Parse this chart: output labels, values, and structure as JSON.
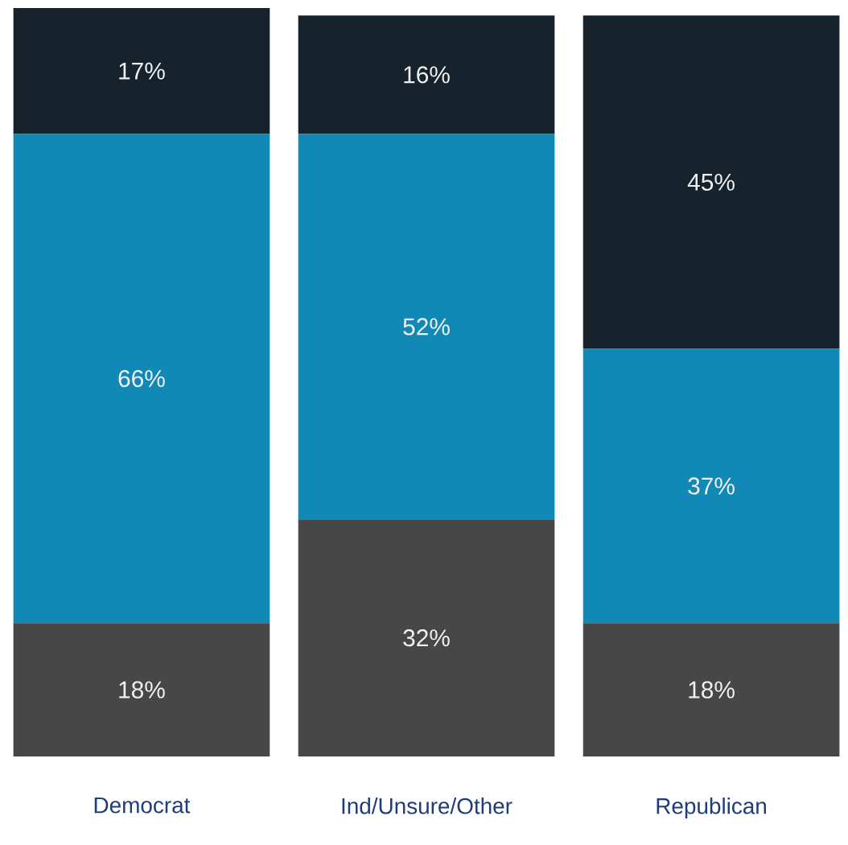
{
  "chart_data": {
    "type": "bar",
    "stacked": true,
    "categories": [
      "Democrat",
      "Ind/Unsure/Other",
      "Republican"
    ],
    "series": [
      {
        "color": "#474747",
        "values": [
          18,
          32,
          18
        ],
        "value_labels": [
          "18%",
          "32%",
          "18%"
        ]
      },
      {
        "color": "#1189b6",
        "values": [
          66,
          52,
          37
        ],
        "value_labels": [
          "66%",
          "52%",
          "37%"
        ]
      },
      {
        "color": "#17232c",
        "values": [
          17,
          16,
          45
        ],
        "value_labels": [
          "17%",
          "16%",
          "45%"
        ]
      }
    ]
  }
}
